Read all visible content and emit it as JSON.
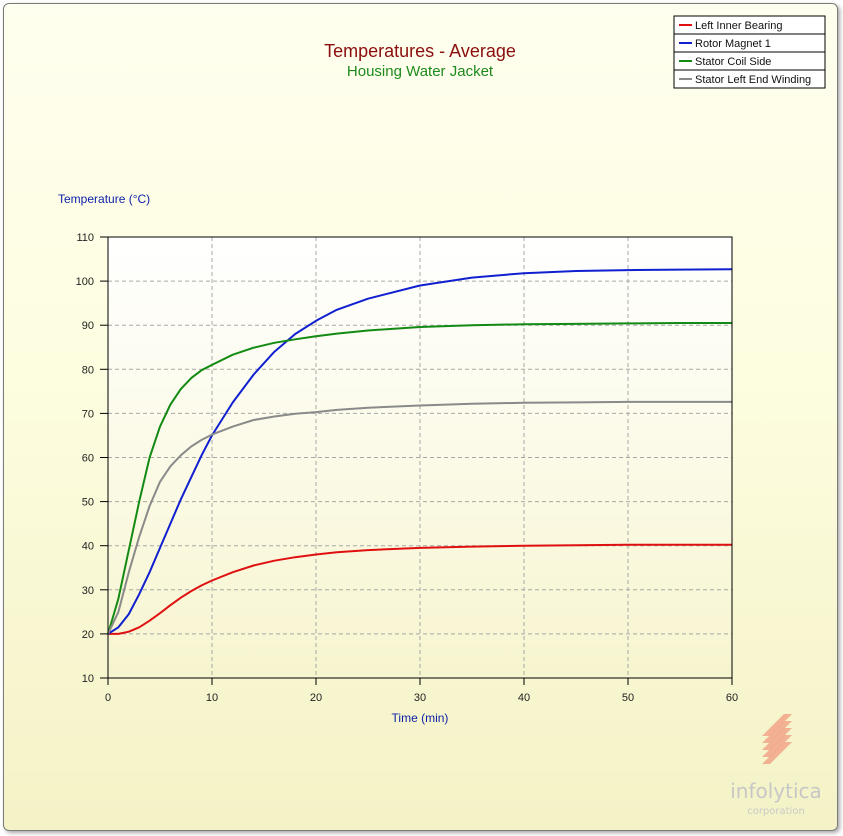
{
  "chart_data": {
    "type": "line",
    "title": "Temperatures - Average",
    "subtitle": "Housing Water Jacket",
    "xlabel": "Time (min)",
    "ylabel": "Temperature (°C)",
    "xlim": [
      0,
      60
    ],
    "ylim": [
      10,
      110
    ],
    "xticks": [
      0,
      10,
      20,
      30,
      40,
      50,
      60
    ],
    "yticks": [
      10,
      20,
      30,
      40,
      50,
      60,
      70,
      80,
      90,
      100,
      110
    ],
    "grid": true,
    "legend_position": "top-right",
    "x": [
      0,
      1,
      2,
      3,
      4,
      5,
      6,
      7,
      8,
      9,
      10,
      12,
      14,
      16,
      18,
      20,
      22,
      25,
      30,
      35,
      40,
      45,
      50,
      55,
      60
    ],
    "series": [
      {
        "name": "Left Inner Bearing",
        "color": "#e01010",
        "values": [
          20.0,
          20.0,
          20.5,
          21.5,
          23.0,
          24.7,
          26.5,
          28.2,
          29.7,
          31.0,
          32.1,
          34.0,
          35.5,
          36.6,
          37.4,
          38.0,
          38.5,
          39.0,
          39.5,
          39.8,
          40.0,
          40.1,
          40.2,
          40.2,
          40.2
        ]
      },
      {
        "name": "Rotor Magnet 1",
        "color": "#1020d0",
        "values": [
          20.0,
          21.5,
          24.5,
          29.0,
          34.0,
          39.5,
          45.0,
          50.5,
          55.5,
          60.5,
          65.0,
          72.5,
          78.8,
          84.0,
          88.0,
          91.0,
          93.5,
          96.0,
          99.0,
          100.8,
          101.8,
          102.3,
          102.5,
          102.6,
          102.7
        ]
      },
      {
        "name": "Stator Coil Side",
        "color": "#138a13",
        "values": [
          20.0,
          28.0,
          39.0,
          50.0,
          60.0,
          67.0,
          72.0,
          75.5,
          78.0,
          79.8,
          81.0,
          83.3,
          84.9,
          86.0,
          86.8,
          87.5,
          88.1,
          88.8,
          89.6,
          90.0,
          90.2,
          90.3,
          90.4,
          90.5,
          90.5
        ]
      },
      {
        "name": "Stator Left End Winding",
        "color": "#8a8a8a",
        "values": [
          20.0,
          25.0,
          34.0,
          42.0,
          49.0,
          54.5,
          58.0,
          60.5,
          62.5,
          64.0,
          65.2,
          67.0,
          68.5,
          69.3,
          69.9,
          70.3,
          70.8,
          71.3,
          71.8,
          72.2,
          72.4,
          72.5,
          72.6,
          72.6,
          72.6
        ]
      }
    ]
  },
  "branding": {
    "name": "infolytica",
    "tagline": "corporation",
    "logo_color": "#f2a58a"
  }
}
